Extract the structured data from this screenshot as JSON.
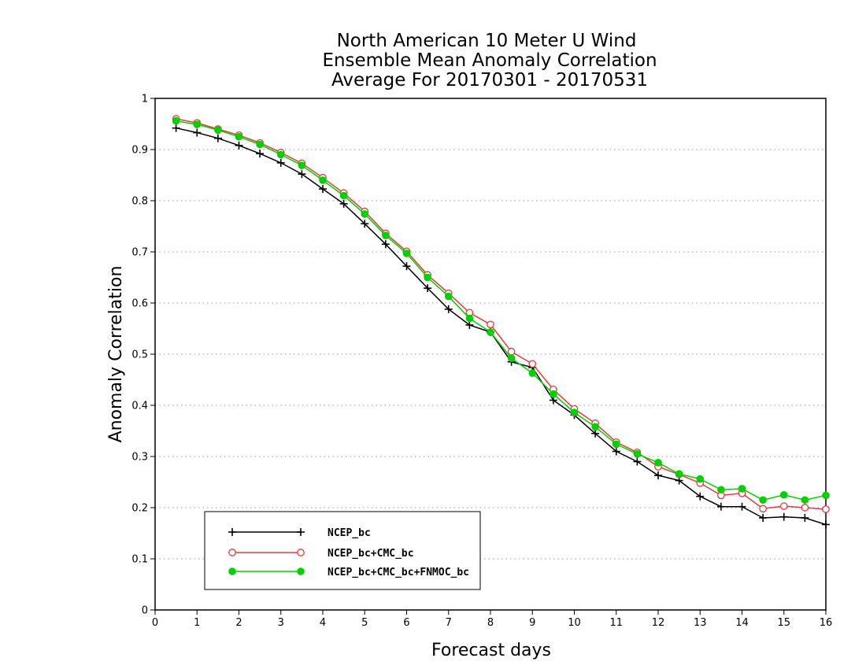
{
  "chart_data": {
    "type": "line",
    "title_lines": [
      "North American 10 Meter U Wind",
      "Ensemble Mean Anomaly Correlation",
      "Average For 20170301 - 20170531"
    ],
    "xlabel": "Forecast days",
    "ylabel": "Anomaly Correlation",
    "xlim": [
      0,
      16
    ],
    "ylim": [
      0,
      1
    ],
    "xticks": [
      0,
      1,
      2,
      3,
      4,
      5,
      6,
      7,
      8,
      9,
      10,
      11,
      12,
      13,
      14,
      15,
      16
    ],
    "yticks": [
      0,
      0.1,
      0.2,
      0.3,
      0.4,
      0.5,
      0.6,
      0.7,
      0.8,
      0.9,
      1
    ],
    "grid": "horizontal-dotted",
    "legend_position": "bottom-left",
    "x": [
      0.5,
      1,
      1.5,
      2,
      2.5,
      3,
      3.5,
      4,
      4.5,
      5,
      5.5,
      6,
      6.5,
      7,
      7.5,
      8,
      8.5,
      9,
      9.5,
      10,
      10.5,
      11,
      11.5,
      12,
      12.5,
      13,
      13.5,
      14,
      14.5,
      15,
      15.5,
      16
    ],
    "series": [
      {
        "name": "NCEP_bc",
        "color": "#000000",
        "marker": "plus",
        "values": [
          0.942,
          0.933,
          0.922,
          0.908,
          0.892,
          0.874,
          0.852,
          0.823,
          0.794,
          0.755,
          0.715,
          0.672,
          0.629,
          0.588,
          0.557,
          0.543,
          0.485,
          0.474,
          0.41,
          0.381,
          0.345,
          0.31,
          0.29,
          0.263,
          0.253,
          0.222,
          0.202,
          0.202,
          0.18,
          0.182,
          0.18,
          0.167
        ]
      },
      {
        "name": "NCEP_bc+CMC_bc",
        "color": "#e8383d",
        "marker": "open-circle",
        "values": [
          0.96,
          0.952,
          0.94,
          0.928,
          0.913,
          0.894,
          0.873,
          0.845,
          0.815,
          0.779,
          0.736,
          0.701,
          0.655,
          0.619,
          0.581,
          0.558,
          0.505,
          0.481,
          0.431,
          0.393,
          0.365,
          0.328,
          0.308,
          0.28,
          0.265,
          0.248,
          0.224,
          0.228,
          0.198,
          0.203,
          0.2,
          0.197
        ]
      },
      {
        "name": "NCEP_bc+CMC_bc+FNMOC_bc",
        "color": "#00d000",
        "marker": "filled-circle",
        "values": [
          0.956,
          0.949,
          0.938,
          0.925,
          0.91,
          0.89,
          0.869,
          0.84,
          0.81,
          0.774,
          0.732,
          0.697,
          0.65,
          0.613,
          0.57,
          0.543,
          0.492,
          0.463,
          0.422,
          0.386,
          0.358,
          0.324,
          0.305,
          0.288,
          0.266,
          0.256,
          0.235,
          0.237,
          0.215,
          0.225,
          0.215,
          0.224
        ]
      }
    ]
  }
}
